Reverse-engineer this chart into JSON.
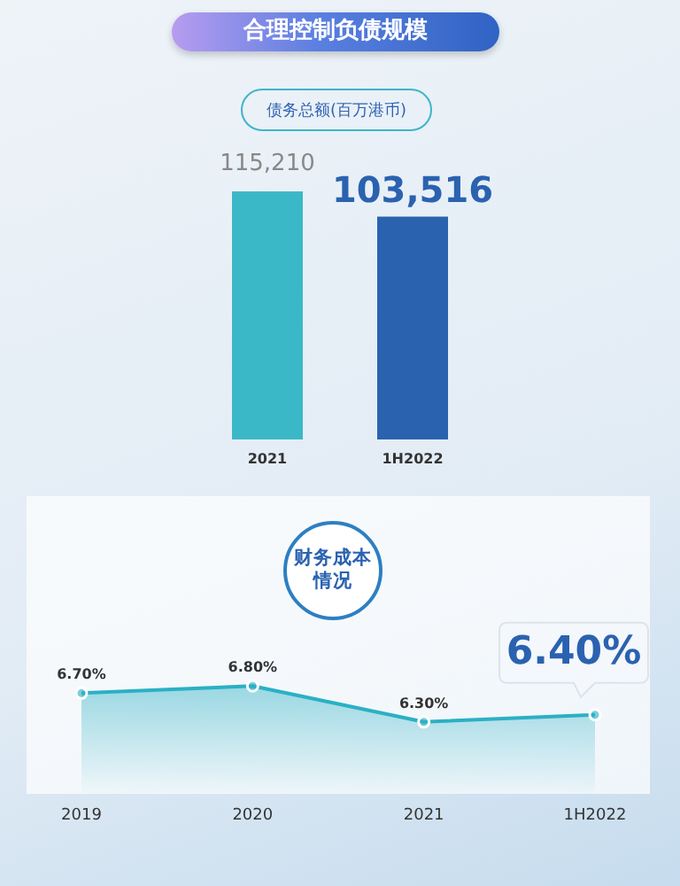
{
  "chart_data": [
    {
      "type": "bar",
      "title": "合理控制负债规模",
      "subtitle": "债务总额(百万港币)",
      "categories": [
        "2021",
        "1H2022"
      ],
      "values": [
        115210,
        103516
      ],
      "colors": [
        "#3bb8c8",
        "#2a62b0"
      ],
      "value_labels": [
        "115,210",
        "103,516"
      ]
    },
    {
      "type": "area",
      "title": "财务成本情况",
      "categories": [
        "2019",
        "2020",
        "2021",
        "1H2022"
      ],
      "values": [
        6.7,
        6.8,
        6.3,
        6.4
      ],
      "color": "#2bb0c4",
      "marker": "circle",
      "value_labels": [
        "6.70%",
        "6.80%",
        "6.30%",
        "6.40%"
      ]
    }
  ]
}
